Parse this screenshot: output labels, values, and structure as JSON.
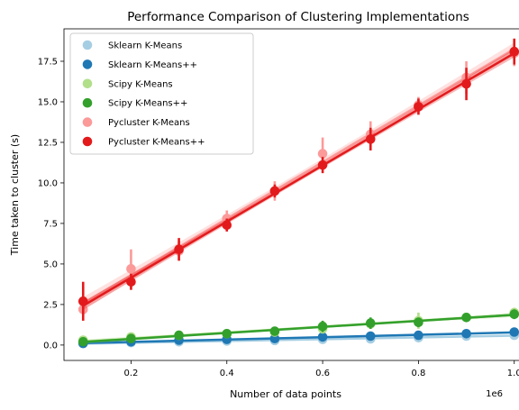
{
  "chart_data": {
    "type": "scatter",
    "title": "Performance Comparison of Clustering Implementations",
    "xlabel": "Number of data points",
    "ylabel": "Time taken to cluster (s)",
    "x_offset_label": "1e6",
    "xlim": [
      0.06,
      1.04
    ],
    "ylim": [
      -0.95,
      19.5
    ],
    "xticks": [
      0.2,
      0.4,
      0.6,
      0.8,
      1.0
    ],
    "xtick_labels": [
      "0.2",
      "0.4",
      "0.6",
      "0.8",
      "1.0"
    ],
    "yticks": [
      0.0,
      2.5,
      5.0,
      7.5,
      10.0,
      12.5,
      15.0,
      17.5
    ],
    "ytick_labels": [
      "0.0",
      "2.5",
      "5.0",
      "7.5",
      "10.0",
      "12.5",
      "15.0",
      "17.5"
    ],
    "grid": false,
    "legend_position": "top-left",
    "x": [
      0.1,
      0.2,
      0.3,
      0.4,
      0.5,
      0.6,
      0.7,
      0.8,
      0.9,
      1.0
    ],
    "series": [
      {
        "name": "Sklearn K-Means",
        "color": "#a6cee3",
        "values": [
          0.1,
          0.15,
          0.2,
          0.25,
          0.28,
          0.35,
          0.38,
          0.45,
          0.55,
          0.6
        ],
        "err": [
          0.05,
          0.05,
          0.05,
          0.05,
          0.05,
          0.05,
          0.05,
          0.05,
          0.05,
          0.05
        ]
      },
      {
        "name": "Sklearn K-Means++",
        "color": "#1f78b4",
        "values": [
          0.1,
          0.2,
          0.3,
          0.35,
          0.4,
          0.5,
          0.55,
          0.6,
          0.7,
          0.8
        ],
        "err": [
          0.05,
          0.05,
          0.05,
          0.05,
          0.05,
          0.05,
          0.05,
          0.05,
          0.05,
          0.05
        ]
      },
      {
        "name": "Scipy K-Means",
        "color": "#b2df8a",
        "values": [
          0.3,
          0.5,
          0.6,
          0.7,
          0.8,
          1.0,
          1.3,
          1.5,
          1.7,
          2.0
        ],
        "err": [
          0.1,
          0.1,
          0.1,
          0.1,
          0.1,
          0.2,
          0.3,
          0.5,
          0.2,
          0.3
        ]
      },
      {
        "name": "Scipy K-Means++",
        "color": "#33a02c",
        "values": [
          0.2,
          0.4,
          0.6,
          0.7,
          0.85,
          1.15,
          1.35,
          1.4,
          1.7,
          1.9
        ],
        "err": [
          0.1,
          0.1,
          0.1,
          0.1,
          0.1,
          0.35,
          0.35,
          0.3,
          0.2,
          0.3
        ]
      },
      {
        "name": "Pycluster K-Means",
        "color": "#fb9a99",
        "values": [
          2.2,
          4.7,
          5.8,
          7.8,
          9.5,
          11.8,
          13.0,
          14.8,
          16.5,
          18.0
        ],
        "err": [
          0.3,
          1.2,
          0.6,
          0.5,
          0.6,
          1.0,
          0.8,
          0.5,
          1.0,
          0.8
        ]
      },
      {
        "name": "Pycluster K-Means++",
        "color": "#e31a1c",
        "values": [
          2.7,
          3.9,
          5.9,
          7.4,
          9.5,
          11.1,
          12.7,
          14.7,
          16.1,
          18.1
        ],
        "err": [
          1.2,
          0.5,
          0.7,
          0.4,
          0.4,
          0.5,
          0.7,
          0.5,
          1.0,
          0.8
        ]
      }
    ]
  }
}
